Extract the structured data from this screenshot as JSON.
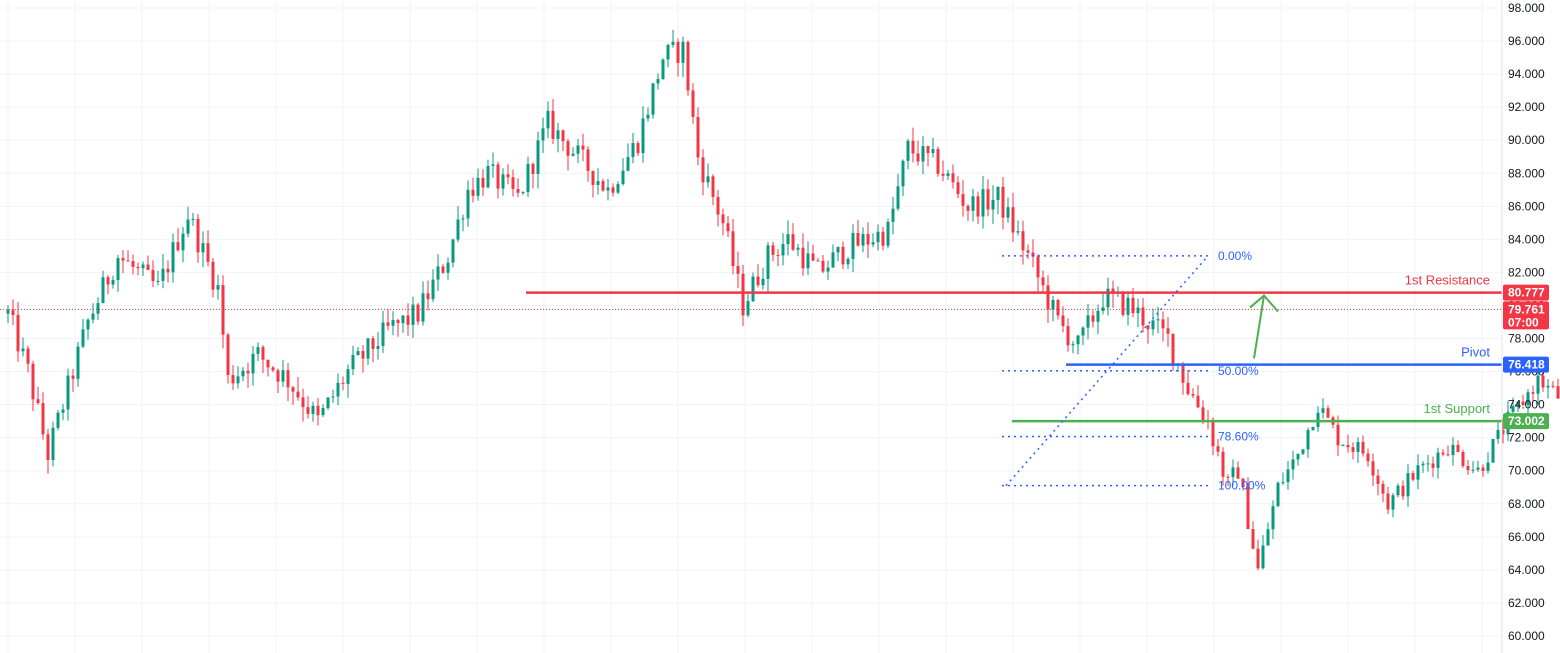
{
  "colors": {
    "up": "#089981",
    "down": "#f23645",
    "resistance": "#f23645",
    "pivot": "#2962ff",
    "support": "#4caf50",
    "fib": "#2962ff",
    "grid": "#f0f3fa",
    "arrow": "#4caf50",
    "price": "#f23645"
  },
  "chart_data": {
    "type": "candlestick",
    "title": "",
    "ylim": [
      60,
      98
    ],
    "y_ticks": [
      "60.000",
      "62.000",
      "64.000",
      "66.000",
      "68.000",
      "70.000",
      "72.000",
      "74.000",
      "76.000",
      "78.000",
      "80.000",
      "82.000",
      "84.000",
      "86.000",
      "88.000",
      "90.000",
      "92.000",
      "94.000",
      "96.000",
      "98.000"
    ],
    "grid": true,
    "candle_count": 246,
    "candle_path": [
      {
        "i": 0,
        "p": 79.5
      },
      {
        "i": 4,
        "p": 76
      },
      {
        "i": 8,
        "p": 71
      },
      {
        "i": 12,
        "p": 75
      },
      {
        "i": 16,
        "p": 79
      },
      {
        "i": 22,
        "p": 83
      },
      {
        "i": 30,
        "p": 81
      },
      {
        "i": 36,
        "p": 85.5
      },
      {
        "i": 42,
        "p": 81
      },
      {
        "i": 44,
        "p": 75.5
      },
      {
        "i": 50,
        "p": 77
      },
      {
        "i": 56,
        "p": 75.5
      },
      {
        "i": 62,
        "p": 73
      },
      {
        "i": 68,
        "p": 76
      },
      {
        "i": 76,
        "p": 78.5
      },
      {
        "i": 82,
        "p": 79.5
      },
      {
        "i": 88,
        "p": 83
      },
      {
        "i": 92,
        "p": 87
      },
      {
        "i": 96,
        "p": 88
      },
      {
        "i": 102,
        "p": 86.5
      },
      {
        "i": 108,
        "p": 91
      },
      {
        "i": 114,
        "p": 89
      },
      {
        "i": 120,
        "p": 87
      },
      {
        "i": 126,
        "p": 90
      },
      {
        "i": 131,
        "p": 95
      },
      {
        "i": 135,
        "p": 95.5
      },
      {
        "i": 138,
        "p": 89
      },
      {
        "i": 143,
        "p": 85
      },
      {
        "i": 147,
        "p": 80
      },
      {
        "i": 152,
        "p": 83
      },
      {
        "i": 156,
        "p": 84
      },
      {
        "i": 162,
        "p": 82
      },
      {
        "i": 168,
        "p": 83.5
      },
      {
        "i": 172,
        "p": 84
      },
      {
        "i": 176,
        "p": 84.5
      },
      {
        "i": 180,
        "p": 89.5
      },
      {
        "i": 186,
        "p": 88.5
      },
      {
        "i": 192,
        "p": 86
      },
      {
        "i": 198,
        "p": 86.5
      },
      {
        "i": 204,
        "p": 83
      },
      {
        "i": 210,
        "p": 79
      },
      {
        "i": 214,
        "p": 77.5
      },
      {
        "i": 219,
        "p": 80.5
      },
      {
        "i": 224,
        "p": 80
      },
      {
        "i": 228,
        "p": 79
      },
      {
        "i": 232,
        "p": 78
      },
      {
        "i": 236,
        "p": 75
      },
      {
        "i": 240,
        "p": 73
      },
      {
        "i": 244,
        "p": 69
      },
      {
        "i": 246,
        "p": 70
      }
    ],
    "candle_path_2": [
      {
        "i": 0,
        "p": 70
      },
      {
        "i": 4,
        "p": 64
      },
      {
        "i": 8,
        "p": 69
      },
      {
        "i": 12,
        "p": 71
      },
      {
        "i": 16,
        "p": 74
      },
      {
        "i": 20,
        "p": 72
      },
      {
        "i": 26,
        "p": 71
      },
      {
        "i": 30,
        "p": 68
      },
      {
        "i": 36,
        "p": 70
      },
      {
        "i": 42,
        "p": 71.5
      },
      {
        "i": 48,
        "p": 70
      },
      {
        "i": 54,
        "p": 73
      },
      {
        "i": 60,
        "p": 75.5
      },
      {
        "i": 66,
        "p": 74
      },
      {
        "i": 70,
        "p": 71
      },
      {
        "i": 76,
        "p": 72.5
      },
      {
        "i": 80,
        "p": 73
      },
      {
        "i": 86,
        "p": 71.5
      },
      {
        "i": 88,
        "p": 72.5
      },
      {
        "i": 91,
        "p": 76.5
      },
      {
        "i": 96,
        "p": 75
      },
      {
        "i": 100,
        "p": 74
      },
      {
        "i": 104,
        "p": 76
      },
      {
        "i": 110,
        "p": 75.5
      },
      {
        "i": 114,
        "p": 73.5
      },
      {
        "i": 118,
        "p": 75
      },
      {
        "i": 124,
        "p": 78
      },
      {
        "i": 128,
        "p": 79.5
      },
      {
        "i": 132,
        "p": 80
      },
      {
        "i": 136,
        "p": 79
      },
      {
        "i": 140,
        "p": 80
      },
      {
        "i": 144,
        "p": 78.5
      },
      {
        "i": 148,
        "p": 79.5
      },
      {
        "i": 150,
        "p": 82.5
      },
      {
        "i": 152,
        "p": 80.5
      },
      {
        "i": 154,
        "p": 79.5
      },
      {
        "i": 156,
        "p": 79.8
      }
    ],
    "levels": [
      {
        "name": "1st Resistance",
        "value": 80.777,
        "tag": "80.777",
        "color": "#f23645"
      },
      {
        "name": "Pivot",
        "value": 76.418,
        "tag": "76.418",
        "color": "#2962ff"
      },
      {
        "name": "1st Support",
        "value": 73.002,
        "tag": "73.002",
        "color": "#4caf50"
      }
    ],
    "current_price": {
      "value": 79.761,
      "tag": "79.761",
      "countdown": "07:00"
    },
    "fibonacci": {
      "high": 83.0,
      "low": 69.1,
      "ratios": [
        {
          "label": "0.00%",
          "ratio": 0.0
        },
        {
          "label": "50.00%",
          "ratio": 0.5
        },
        {
          "label": "78.60%",
          "ratio": 0.786
        },
        {
          "label": "100.00%",
          "ratio": 1.0
        }
      ]
    },
    "projection": {
      "from": 76.8,
      "to": 80.6,
      "end": 79.8
    }
  }
}
